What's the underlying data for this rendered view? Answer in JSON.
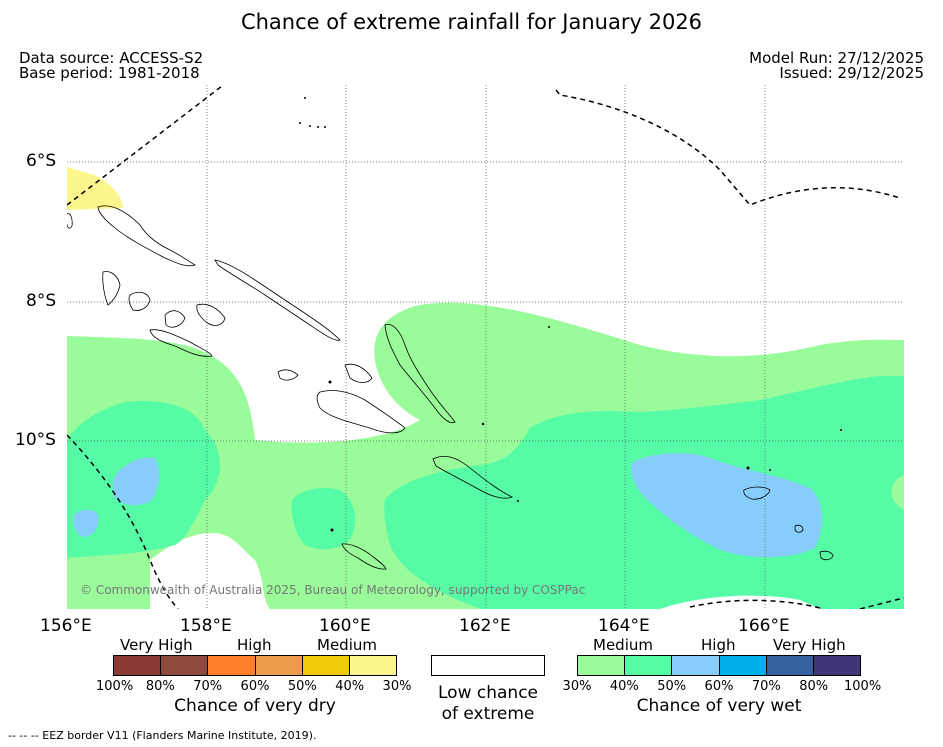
{
  "title": "Chance of extreme rainfall for January 2026",
  "header": {
    "data_source": "Data source: ACCESS-S2",
    "base_period": "Base period: 1981-2018",
    "model_run": "Model Run: 27/12/2025",
    "issued": "Issued: 29/12/2025"
  },
  "map": {
    "lat_labels": [
      "6°S",
      "8°S",
      "10°S"
    ],
    "lon_labels": [
      "156°E",
      "158°E",
      "160°E",
      "162°E",
      "164°E",
      "166°E"
    ],
    "copyright": "© Commonwealth of Australia 2025, Bureau of Meteorology, supported by COSPPac"
  },
  "legend": {
    "dry": {
      "categories": [
        "Very High",
        "High",
        "Medium"
      ],
      "colors": [
        "#8b3a36",
        "#8e4b3c",
        "#fd7f29",
        "#ed9a4b",
        "#eeca07",
        "#fdf58d"
      ],
      "ticks": [
        "100%",
        "80%",
        "70%",
        "60%",
        "50%",
        "40%",
        "30%"
      ],
      "caption": "Chance of very dry"
    },
    "low": {
      "color": "#ffffff",
      "caption_line1": "Low chance",
      "caption_line2": "of extreme"
    },
    "wet": {
      "categories": [
        "Medium",
        "High",
        "Very High"
      ],
      "colors": [
        "#99fb99",
        "#56fba5",
        "#87cdfc",
        "#00b1ec",
        "#3760a1",
        "#3f3777"
      ],
      "ticks": [
        "30%",
        "40%",
        "50%",
        "60%",
        "70%",
        "80%",
        "100%"
      ],
      "caption": "Chance of very wet"
    }
  },
  "footnote": "--  --  -- EEZ border V11 (Flanders Marine Institute, 2019)."
}
